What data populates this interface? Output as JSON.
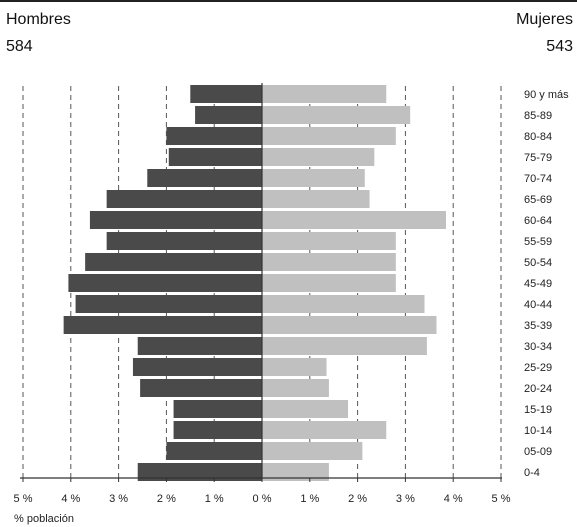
{
  "header": {
    "left_label": "Hombres",
    "left_total": "584",
    "right_label": "Mujeres",
    "right_total": "543"
  },
  "chart_data": {
    "type": "bar",
    "orientation": "horizontal",
    "population_pyramid": true,
    "categories": [
      "90 y más",
      "85-89",
      "80-84",
      "75-79",
      "70-74",
      "65-69",
      "60-64",
      "55-59",
      "50-54",
      "45-49",
      "40-44",
      "35-39",
      "30-34",
      "25-29",
      "20-24",
      "15-19",
      "10-14",
      "05-09",
      "0-4"
    ],
    "series": [
      {
        "name": "Hombres",
        "color": "#4a4a4a",
        "values": [
          1.5,
          1.4,
          2.0,
          1.95,
          2.4,
          3.25,
          3.6,
          3.25,
          3.7,
          4.05,
          3.9,
          4.15,
          2.6,
          2.7,
          2.55,
          1.85,
          1.85,
          2.0,
          2.6
        ]
      },
      {
        "name": "Mujeres",
        "color": "#c0c0c0",
        "values": [
          2.6,
          3.1,
          2.8,
          2.35,
          2.15,
          2.25,
          3.85,
          2.8,
          2.8,
          2.8,
          3.4,
          3.65,
          3.45,
          1.35,
          1.4,
          1.8,
          2.6,
          2.1,
          1.4
        ]
      }
    ],
    "x_ticks": [
      "5 %",
      "4 %",
      "3 %",
      "2 %",
      "1 %",
      "0 %",
      "1 %",
      "2 %",
      "3 %",
      "4 %",
      "5 %"
    ],
    "xlabel": "% población",
    "xlim": [
      -5,
      5
    ],
    "grid": "vertical dashed"
  }
}
